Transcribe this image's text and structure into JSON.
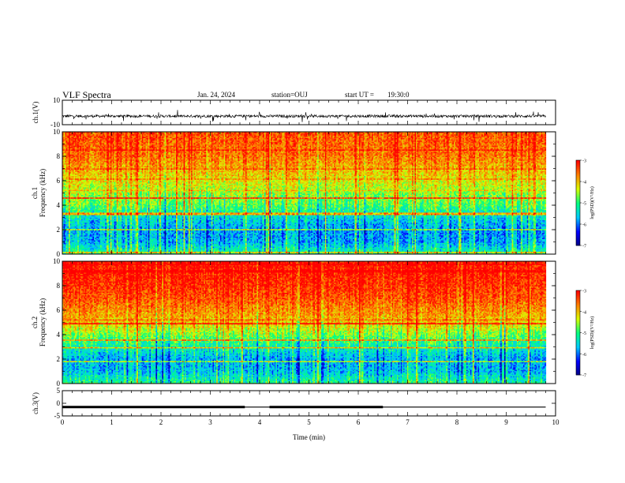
{
  "header": {
    "title": "VLF Spectra",
    "date": "Jan. 24, 2024",
    "station": "station=OUJ",
    "start_ut_label": "start UT =",
    "start_ut_value": "19:30:0"
  },
  "chart_data": [
    {
      "type": "line",
      "ylabel": "ch.1(V)",
      "xlim": [
        0,
        10
      ],
      "ylim": [
        -10,
        10
      ],
      "y_ticks": [
        "10",
        "-10"
      ],
      "note": "dense noisy waveform around about -3 V, spanning 0 to about 9.8 min"
    },
    {
      "type": "heatmap",
      "ylabel": "ch.1\nFrequency (kHz)",
      "xlim": [
        0,
        10
      ],
      "ylim": [
        0,
        10
      ],
      "y_ticks": [
        "0",
        "2",
        "4",
        "6",
        "8",
        "10"
      ],
      "colorbar": {
        "label": "log(PSD)(V²/Hz)",
        "range": [
          -7,
          -3
        ],
        "ticks": [
          "-3",
          "-4",
          "-5",
          "-6",
          "-7"
        ]
      },
      "colormap": [
        "#000080",
        "#0000ff",
        "#00c8ff",
        "#00ff80",
        "#d8ff00",
        "#ff8000",
        "#ff0000"
      ],
      "bands_khz_logpsd": [
        [
          0,
          -5.0
        ],
        [
          1,
          -5.7
        ],
        [
          2,
          -5.8
        ],
        [
          3,
          -5.4
        ],
        [
          4,
          -4.8
        ],
        [
          5,
          -4.5
        ],
        [
          6,
          -4.2
        ],
        [
          7,
          -3.9
        ],
        [
          8,
          -3.6
        ],
        [
          9,
          -3.5
        ],
        [
          10,
          -3.4
        ]
      ]
    },
    {
      "type": "heatmap",
      "ylabel": "ch.2\nFrequency (kHz)",
      "xlim": [
        0,
        10
      ],
      "ylim": [
        0,
        10
      ],
      "y_ticks": [
        "0",
        "2",
        "4",
        "6",
        "8",
        "10"
      ],
      "colorbar": {
        "label": "log(PSD)(V²/Hz)",
        "range": [
          -7,
          -3
        ],
        "ticks": [
          "-3",
          "-4",
          "-5",
          "-6",
          "-7"
        ]
      },
      "colormap": [
        "#000080",
        "#0000ff",
        "#00c8ff",
        "#00ff80",
        "#d8ff00",
        "#ff8000",
        "#ff0000"
      ],
      "bands_khz_logpsd": [
        [
          0,
          -5.0
        ],
        [
          1,
          -5.6
        ],
        [
          2,
          -5.7
        ],
        [
          3,
          -5.2
        ],
        [
          4,
          -4.6
        ],
        [
          5,
          -4.0
        ],
        [
          6,
          -3.7
        ],
        [
          7,
          -3.4
        ],
        [
          8,
          -3.2
        ],
        [
          9,
          -3.1
        ],
        [
          10,
          -3.0
        ]
      ]
    },
    {
      "type": "line",
      "ylabel": "ch.3(V)",
      "xlabel": "Time (min)",
      "xlim": [
        0,
        10
      ],
      "ylim": [
        -5,
        5
      ],
      "y_ticks": [
        "5",
        "0",
        "-5"
      ],
      "x_ticks": [
        "0",
        "1",
        "2",
        "3",
        "4",
        "5",
        "6",
        "7",
        "8",
        "9",
        "10"
      ],
      "x": [
        0,
        3.7,
        4.2,
        6.5,
        9.8
      ],
      "y": [
        -1.5,
        -1.5,
        -1.5,
        -1.5,
        -1.5
      ]
    }
  ]
}
